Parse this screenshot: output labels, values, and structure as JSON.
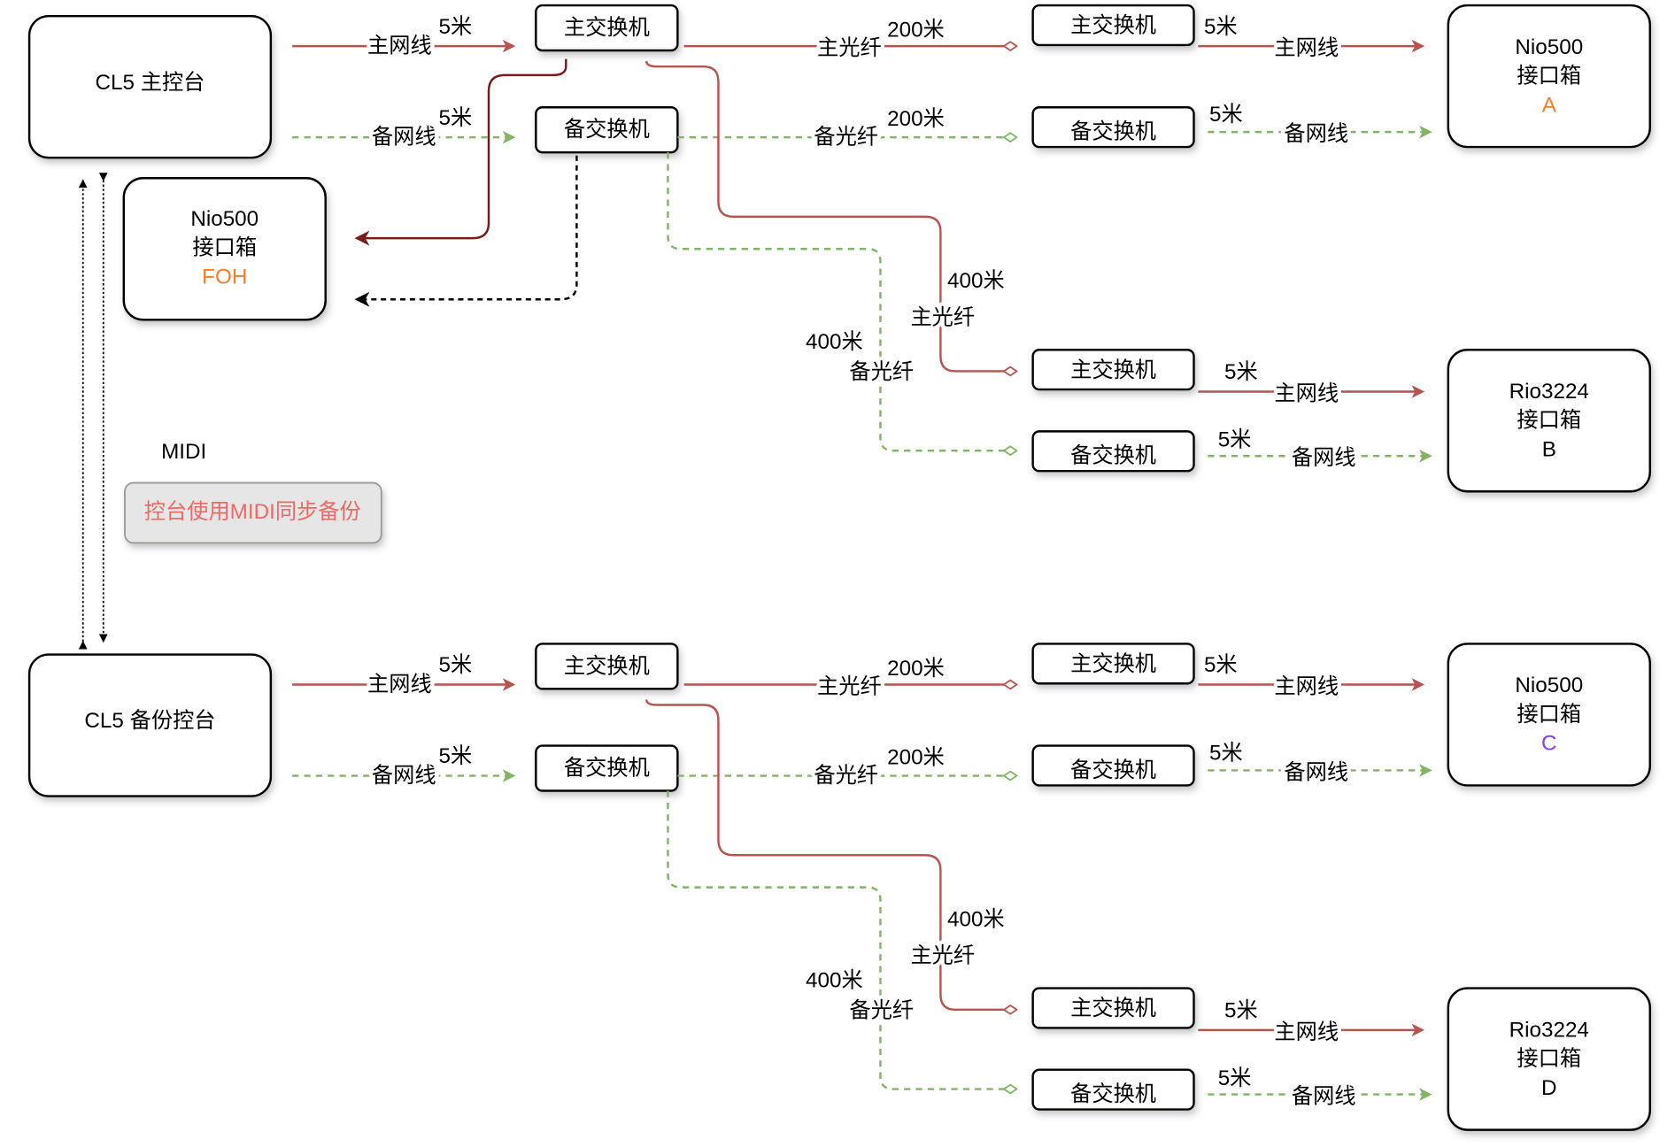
{
  "midi": {
    "label": "MIDI",
    "button": "控台使用MIDI同步备份",
    "button_color": "#ea6b66"
  },
  "foh": {
    "lines": [
      "Nio500",
      "接口箱",
      "FOH"
    ],
    "id_color": "#f08030"
  },
  "colors": {
    "main": "#b85450",
    "backup": "#82b366",
    "foh_main": "#7a1b1b",
    "foh_backup": "#000000"
  },
  "systems": [
    {
      "console": "CL5 主控台",
      "main_switch": "主交换机",
      "backup_switch": "备交换机",
      "main_cable": "主网线",
      "backup_cable": "备网线",
      "cable_length": "5米",
      "main_fiber": "主光纤",
      "backup_fiber": "备光纤",
      "fiber_short": "200米",
      "fiber_long": "400米",
      "destinations": [
        {
          "name": "Nio500",
          "type": "接口箱",
          "id": "A",
          "id_color": "#f08030"
        },
        {
          "name": "Rio3224",
          "type": "接口箱",
          "id": "B",
          "id_color": "#000000"
        }
      ]
    },
    {
      "console": "CL5 备份控台",
      "main_switch": "主交换机",
      "backup_switch": "备交换机",
      "main_cable": "主网线",
      "backup_cable": "备网线",
      "cable_length": "5米",
      "main_fiber": "主光纤",
      "backup_fiber": "备光纤",
      "fiber_short": "200米",
      "fiber_long": "400米",
      "destinations": [
        {
          "name": "Nio500",
          "type": "接口箱",
          "id": "C",
          "id_color": "#7f3fff"
        },
        {
          "name": "Rio3224",
          "type": "接口箱",
          "id": "D",
          "id_color": "#000000"
        }
      ]
    }
  ]
}
